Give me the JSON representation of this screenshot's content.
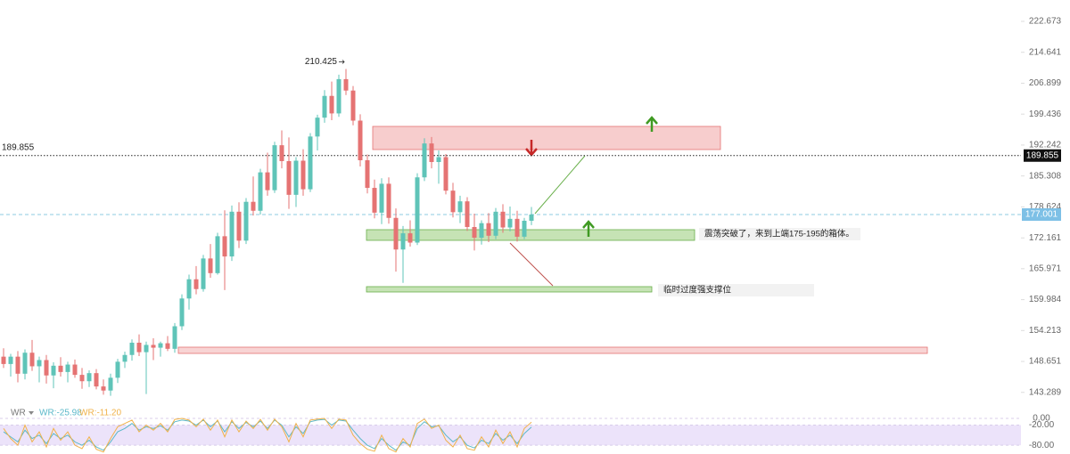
{
  "chart_data": {
    "type": "candlestick",
    "log_scale": true,
    "up_color": "#5fc4b8",
    "down_color": "#e57373",
    "ylim": [
      140.7,
      228.4
    ],
    "yticks": [
      222.673,
      214.641,
      206.899,
      199.436,
      192.242,
      185.308,
      178.624,
      172.161,
      165.971,
      159.984,
      154.213,
      148.651,
      143.289
    ],
    "ohlc": [
      [
        149.5,
        151,
        147.5,
        148.2
      ],
      [
        148.2,
        150,
        146,
        149.5
      ],
      [
        149.5,
        150.5,
        145,
        146.5
      ],
      [
        146.5,
        150.8,
        145.5,
        150.2
      ],
      [
        150.2,
        152.5,
        147,
        147.8
      ],
      [
        147.8,
        149.5,
        145,
        148.9
      ],
      [
        148.9,
        149.8,
        144.8,
        146.2
      ],
      [
        146.2,
        148.5,
        144,
        147.9
      ],
      [
        147.9,
        149.4,
        146,
        146.8
      ],
      [
        146.8,
        148.6,
        145,
        148.1
      ],
      [
        148.1,
        149,
        145.8,
        146.3
      ],
      [
        146.3,
        147.5,
        143.9,
        145.2
      ],
      [
        145.2,
        147.1,
        144.2,
        146.6
      ],
      [
        146.6,
        147.3,
        143.8,
        144.3
      ],
      [
        144.3,
        145.5,
        142.9,
        143.6
      ],
      [
        143.6,
        146.5,
        142.7,
        145.8
      ],
      [
        145.8,
        149.1,
        144.9,
        148.6
      ],
      [
        148.6,
        150.4,
        147.5,
        149.8
      ],
      [
        149.8,
        152.6,
        148.8,
        152.0
      ],
      [
        152.0,
        153.5,
        149.6,
        150.3
      ],
      [
        150.3,
        152.2,
        143,
        151.6
      ],
      [
        151.6,
        152.8,
        148.9,
        151.1
      ],
      [
        151.1,
        152.2,
        149.5,
        151.9
      ],
      [
        151.9,
        153.2,
        150.5,
        150.9
      ],
      [
        150.9,
        155.6,
        150.2,
        155.0
      ],
      [
        155.0,
        161.0,
        154.3,
        160.2
      ],
      [
        160.2,
        164.8,
        158.1,
        163.9
      ],
      [
        163.9,
        166.5,
        161.0,
        162.0
      ],
      [
        162.0,
        168.7,
        161.5,
        168.0
      ],
      [
        168.0,
        170.9,
        164.2,
        165.1
      ],
      [
        165.1,
        173.2,
        164.8,
        172.5
      ],
      [
        172.5,
        177.9,
        161.8,
        168.4
      ],
      [
        168.4,
        178.9,
        167.5,
        177.6
      ],
      [
        177.6,
        179.6,
        170.1,
        171.6
      ],
      [
        171.6,
        180.5,
        170.9,
        179.7
      ],
      [
        179.7,
        185.2,
        176.8,
        177.8
      ],
      [
        177.8,
        186.9,
        177.0,
        186.1
      ],
      [
        186.1,
        190.5,
        181.0,
        182.2
      ],
      [
        182.2,
        193.0,
        181.6,
        192.2
      ],
      [
        192.2,
        195.6,
        187.0,
        188.6
      ],
      [
        188.6,
        194.0,
        178.2,
        181.2
      ],
      [
        181.2,
        189.5,
        178.6,
        188.7
      ],
      [
        188.7,
        191.3,
        181.0,
        182.4
      ],
      [
        182.4,
        195.0,
        181.8,
        194.2
      ],
      [
        194.2,
        199.3,
        191.0,
        198.6
      ],
      [
        198.6,
        205.2,
        197.4,
        203.8
      ],
      [
        203.8,
        207.3,
        198.0,
        199.6
      ],
      [
        199.6,
        209.0,
        198.8,
        207.9
      ],
      [
        207.9,
        210.425,
        204.0,
        205.1
      ],
      [
        205.1,
        206.2,
        196.8,
        197.9
      ],
      [
        197.9,
        199.4,
        187.4,
        188.8
      ],
      [
        188.8,
        190.1,
        181.5,
        182.7
      ],
      [
        182.7,
        184.5,
        176.2,
        177.4
      ],
      [
        177.4,
        184.8,
        175.0,
        183.6
      ],
      [
        183.6,
        185.0,
        175.1,
        176.3
      ],
      [
        176.3,
        178.3,
        165.4,
        169.8
      ],
      [
        169.8,
        174.6,
        163.2,
        173.1
      ],
      [
        173.1,
        175.8,
        170.4,
        171.2
      ],
      [
        171.2,
        185.9,
        170.7,
        185.0
      ],
      [
        185.0,
        193.8,
        184.2,
        192.6
      ],
      [
        192.6,
        194.1,
        187.0,
        188.4
      ],
      [
        188.4,
        191.0,
        183.6,
        189.5
      ],
      [
        189.5,
        190.2,
        181.3,
        182.1
      ],
      [
        182.1,
        183.8,
        176.4,
        177.5
      ],
      [
        177.5,
        181.0,
        175.2,
        179.8
      ],
      [
        179.8,
        180.7,
        173.6,
        174.4
      ],
      [
        174.4,
        177.2,
        169.6,
        172.2
      ],
      [
        172.2,
        175.8,
        170.8,
        175.2
      ],
      [
        175.2,
        177.3,
        171.3,
        172.6
      ],
      [
        172.6,
        178.4,
        171.9,
        177.6
      ],
      [
        177.6,
        179.2,
        173.2,
        174.3
      ],
      [
        174.3,
        178.7,
        173.5,
        176.1
      ],
      [
        176.1,
        177.8,
        171.4,
        172.4
      ],
      [
        172.4,
        176.3,
        171.9,
        175.7
      ],
      [
        175.7,
        178.6,
        174.8,
        177.001
      ]
    ],
    "high_label": 210.425,
    "marked_price": 189.855,
    "last_price": 177.001,
    "annotations": [
      "震荡突破了，来到上端175-195的箱体。",
      "临时过度强支撑位"
    ],
    "indicator": {
      "type": "line",
      "name": "WR",
      "ylim": [
        -100,
        0
      ],
      "yticks": [
        {
          "value": 0,
          "label": "0.00"
        },
        {
          "value": -20,
          "label": "-20.00"
        },
        {
          "value": -80,
          "label": "-80.00"
        }
      ],
      "series": [
        {
          "name": "WR:-25.98",
          "color": "#5bb8c9",
          "values": [
            -40,
            -55,
            -70,
            -35,
            -60,
            -50,
            -75,
            -45,
            -60,
            -50,
            -70,
            -80,
            -65,
            -85,
            -95,
            -70,
            -40,
            -30,
            -15,
            -35,
            -25,
            -30,
            -22,
            -35,
            -10,
            -5,
            -8,
            -20,
            -5,
            -25,
            -8,
            -40,
            -10,
            -30,
            -12,
            -25,
            -8,
            -30,
            -5,
            -20,
            -55,
            -25,
            -45,
            -10,
            -5,
            -3,
            -20,
            -5,
            -8,
            -35,
            -60,
            -80,
            -90,
            -60,
            -80,
            -95,
            -70,
            -80,
            -30,
            -10,
            -25,
            -22,
            -50,
            -70,
            -55,
            -80,
            -88,
            -65,
            -75,
            -45,
            -65,
            -50,
            -75,
            -45,
            -25.98
          ]
        },
        {
          "name": "WR:-11.20",
          "color": "#f0b24a",
          "values": [
            -30,
            -60,
            -80,
            -20,
            -70,
            -40,
            -85,
            -30,
            -65,
            -40,
            -80,
            -90,
            -55,
            -92,
            -100,
            -60,
            -25,
            -15,
            -5,
            -40,
            -20,
            -35,
            -15,
            -40,
            -3,
            0,
            -5,
            -25,
            -2,
            -35,
            -5,
            -55,
            -5,
            -40,
            -8,
            -30,
            -3,
            -35,
            -2,
            -25,
            -70,
            -15,
            -55,
            -5,
            -2,
            0,
            -30,
            -2,
            -5,
            -50,
            -75,
            -92,
            -98,
            -50,
            -90,
            -100,
            -60,
            -85,
            -15,
            -2,
            -30,
            -20,
            -65,
            -85,
            -50,
            -90,
            -95,
            -55,
            -85,
            -35,
            -75,
            -40,
            -85,
            -30,
            -11.2
          ]
        }
      ]
    }
  }
}
